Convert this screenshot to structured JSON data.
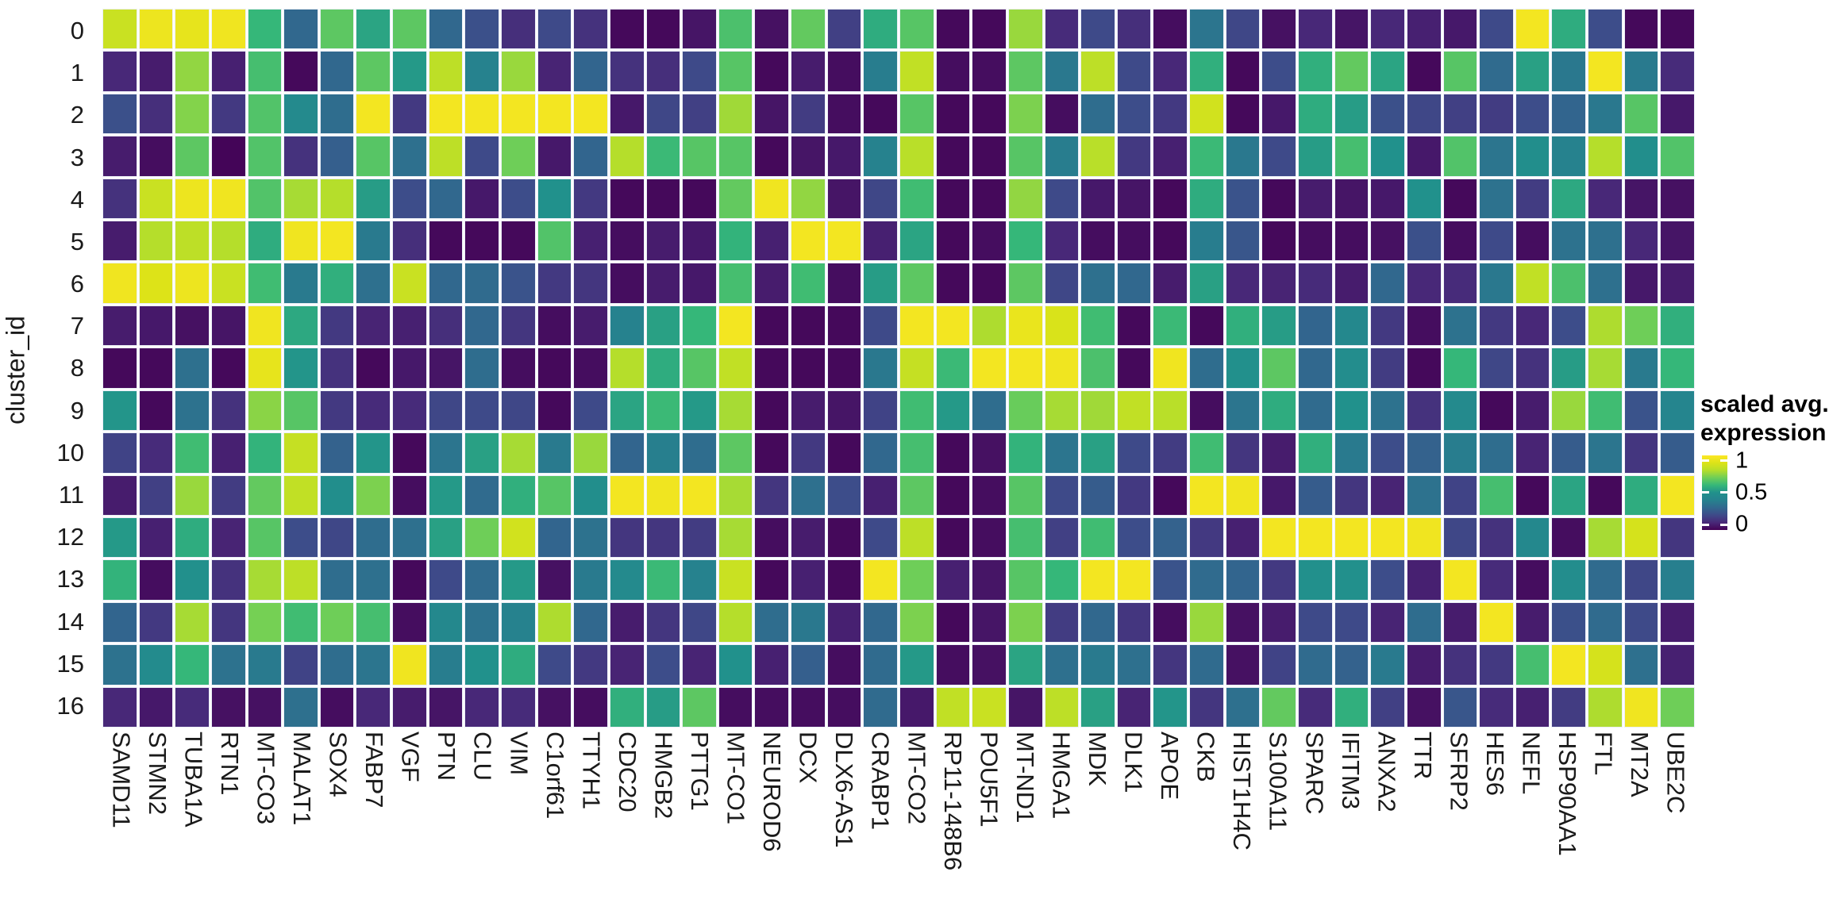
{
  "y_axis": {
    "title": "cluster_id",
    "labels": [
      "0",
      "1",
      "2",
      "3",
      "4",
      "5",
      "6",
      "7",
      "8",
      "9",
      "10",
      "11",
      "12",
      "13",
      "14",
      "15",
      "16"
    ]
  },
  "x_axis": {
    "labels": [
      "SAMD11",
      "STMN2",
      "TUBA1A",
      "RTN1",
      "MT-CO3",
      "MALAT1",
      "SOX4",
      "FABP7",
      "VGF",
      "PTN",
      "CLU",
      "VIM",
      "C1orf61",
      "TTYH1",
      "CDC20",
      "HMGB2",
      "PTTG1",
      "MT-CO1",
      "NEUROD6",
      "DCX",
      "DLX6-AS1",
      "CRABP1",
      "MT-CO2",
      "RP11-148B6",
      "POU5F1",
      "MT-ND1",
      "HMGA1",
      "MDK",
      "DLK1",
      "APOE",
      "CKB",
      "HIST1H4C",
      "S100A11",
      "SPARC",
      "IFITM3",
      "ANXA2",
      "TTR",
      "SFRP2",
      "HES6",
      "NEFL",
      "HSP90AA1",
      "FTL",
      "MT2A",
      "UBE2C"
    ]
  },
  "legend": {
    "title_lines": [
      "scaled avg.",
      "expression"
    ],
    "tick_labels": [
      "1",
      "0.5",
      "0"
    ],
    "tick_values": [
      1,
      0.5,
      0
    ]
  },
  "colors": {
    "background": "#ffffff",
    "text": "#1a1a1a",
    "colormap": "viridis",
    "viridis_stops": [
      "#440154",
      "#482878",
      "#3e4a89",
      "#31688e",
      "#26828e",
      "#21918c",
      "#35b779",
      "#6ece58",
      "#b5de2b",
      "#dde318",
      "#fde725"
    ]
  },
  "chart_data": {
    "type": "heatmap",
    "title": "",
    "xlabel": "",
    "ylabel": "cluster_id",
    "legend_title": "scaled avg. expression",
    "value_range": [
      0,
      1
    ],
    "colormap": "viridis",
    "grid": "white-gaps",
    "legend_position": "right",
    "rows": [
      "0",
      "1",
      "2",
      "3",
      "4",
      "5",
      "6",
      "7",
      "8",
      "9",
      "10",
      "11",
      "12",
      "13",
      "14",
      "15",
      "16"
    ],
    "columns": [
      "SAMD11",
      "STMN2",
      "TUBA1A",
      "RTN1",
      "MT-CO3",
      "MALAT1",
      "SOX4",
      "FABP7",
      "VGF",
      "PTN",
      "CLU",
      "VIM",
      "C1orf61",
      "TTYH1",
      "CDC20",
      "HMGB2",
      "PTTG1",
      "MT-CO1",
      "NEUROD6",
      "DCX",
      "DLX6-AS1",
      "CRABP1",
      "MT-CO2",
      "RP11-148B6",
      "POU5F1",
      "MT-ND1",
      "HMGA1",
      "MDK",
      "DLK1",
      "APOE",
      "CKB",
      "HIST1H4C",
      "S100A11",
      "SPARC",
      "IFITM3",
      "ANXA2",
      "TTR",
      "SFRP2",
      "HES6",
      "NEFL",
      "HSP90AA1",
      "FTL",
      "MT2A",
      "UBE2C"
    ],
    "values": [
      [
        0.85,
        0.95,
        0.93,
        0.96,
        0.6,
        0.3,
        0.67,
        0.55,
        0.67,
        0.3,
        0.22,
        0.12,
        0.2,
        0.13,
        0.02,
        0.02,
        0.05,
        0.64,
        0.04,
        0.68,
        0.17,
        0.57,
        0.66,
        0.02,
        0.02,
        0.76,
        0.11,
        0.2,
        0.12,
        0.03,
        0.35,
        0.19,
        0.04,
        0.1,
        0.05,
        0.1,
        0.08,
        0.06,
        0.2,
        0.97,
        0.57,
        0.21,
        0.02,
        0.02
      ],
      [
        0.1,
        0.07,
        0.75,
        0.08,
        0.63,
        0.02,
        0.3,
        0.67,
        0.52,
        0.82,
        0.4,
        0.76,
        0.09,
        0.29,
        0.13,
        0.12,
        0.2,
        0.66,
        0.02,
        0.07,
        0.03,
        0.38,
        0.83,
        0.03,
        0.03,
        0.67,
        0.36,
        0.82,
        0.2,
        0.1,
        0.58,
        0.02,
        0.21,
        0.58,
        0.68,
        0.55,
        0.02,
        0.66,
        0.31,
        0.54,
        0.36,
        0.97,
        0.37,
        0.11
      ],
      [
        0.22,
        0.12,
        0.73,
        0.15,
        0.65,
        0.45,
        0.32,
        0.97,
        0.15,
        0.97,
        0.97,
        0.97,
        0.97,
        0.97,
        0.06,
        0.19,
        0.17,
        0.77,
        0.05,
        0.16,
        0.03,
        0.02,
        0.66,
        0.02,
        0.02,
        0.72,
        0.03,
        0.32,
        0.21,
        0.15,
        0.87,
        0.02,
        0.06,
        0.57,
        0.53,
        0.22,
        0.19,
        0.17,
        0.16,
        0.21,
        0.29,
        0.36,
        0.66,
        0.06
      ],
      [
        0.07,
        0.03,
        0.67,
        0.01,
        0.65,
        0.13,
        0.27,
        0.66,
        0.33,
        0.82,
        0.2,
        0.7,
        0.06,
        0.29,
        0.8,
        0.61,
        0.66,
        0.66,
        0.02,
        0.05,
        0.06,
        0.4,
        0.81,
        0.02,
        0.02,
        0.66,
        0.38,
        0.81,
        0.15,
        0.08,
        0.61,
        0.36,
        0.2,
        0.53,
        0.63,
        0.5,
        0.06,
        0.65,
        0.35,
        0.48,
        0.4,
        0.8,
        0.48,
        0.65
      ],
      [
        0.13,
        0.85,
        0.95,
        0.96,
        0.65,
        0.78,
        0.8,
        0.53,
        0.21,
        0.3,
        0.06,
        0.21,
        0.5,
        0.15,
        0.02,
        0.02,
        0.02,
        0.68,
        0.96,
        0.75,
        0.05,
        0.19,
        0.62,
        0.02,
        0.02,
        0.75,
        0.2,
        0.06,
        0.05,
        0.02,
        0.57,
        0.23,
        0.02,
        0.07,
        0.05,
        0.06,
        0.5,
        0.02,
        0.34,
        0.16,
        0.56,
        0.1,
        0.05,
        0.04
      ],
      [
        0.07,
        0.8,
        0.82,
        0.8,
        0.57,
        0.96,
        0.97,
        0.37,
        0.12,
        0.02,
        0.02,
        0.02,
        0.65,
        0.08,
        0.03,
        0.07,
        0.06,
        0.59,
        0.08,
        0.97,
        0.97,
        0.08,
        0.55,
        0.02,
        0.03,
        0.6,
        0.1,
        0.03,
        0.03,
        0.02,
        0.38,
        0.24,
        0.02,
        0.03,
        0.03,
        0.04,
        0.22,
        0.03,
        0.2,
        0.03,
        0.34,
        0.33,
        0.1,
        0.05
      ],
      [
        0.96,
        0.9,
        0.95,
        0.85,
        0.62,
        0.37,
        0.58,
        0.33,
        0.85,
        0.3,
        0.31,
        0.23,
        0.15,
        0.14,
        0.03,
        0.07,
        0.06,
        0.63,
        0.07,
        0.62,
        0.03,
        0.53,
        0.67,
        0.02,
        0.02,
        0.67,
        0.19,
        0.33,
        0.3,
        0.07,
        0.54,
        0.1,
        0.09,
        0.11,
        0.07,
        0.3,
        0.1,
        0.11,
        0.36,
        0.83,
        0.64,
        0.33,
        0.06,
        0.07
      ],
      [
        0.07,
        0.06,
        0.04,
        0.05,
        0.96,
        0.56,
        0.15,
        0.09,
        0.08,
        0.12,
        0.3,
        0.14,
        0.03,
        0.07,
        0.4,
        0.54,
        0.6,
        0.97,
        0.02,
        0.02,
        0.02,
        0.2,
        0.97,
        0.97,
        0.79,
        0.94,
        0.89,
        0.62,
        0.02,
        0.61,
        0.02,
        0.58,
        0.53,
        0.29,
        0.44,
        0.15,
        0.03,
        0.34,
        0.15,
        0.1,
        0.21,
        0.79,
        0.7,
        0.58
      ],
      [
        0.02,
        0.02,
        0.33,
        0.02,
        0.93,
        0.51,
        0.13,
        0.02,
        0.06,
        0.05,
        0.32,
        0.03,
        0.02,
        0.03,
        0.8,
        0.57,
        0.66,
        0.83,
        0.02,
        0.02,
        0.02,
        0.36,
        0.84,
        0.61,
        0.97,
        0.97,
        0.96,
        0.64,
        0.02,
        0.96,
        0.32,
        0.49,
        0.67,
        0.3,
        0.47,
        0.16,
        0.02,
        0.6,
        0.19,
        0.13,
        0.53,
        0.78,
        0.37,
        0.6
      ],
      [
        0.51,
        0.02,
        0.34,
        0.13,
        0.74,
        0.66,
        0.15,
        0.11,
        0.11,
        0.19,
        0.2,
        0.19,
        0.02,
        0.2,
        0.55,
        0.61,
        0.52,
        0.78,
        0.02,
        0.07,
        0.05,
        0.18,
        0.62,
        0.52,
        0.32,
        0.69,
        0.78,
        0.77,
        0.83,
        0.81,
        0.03,
        0.35,
        0.57,
        0.31,
        0.5,
        0.34,
        0.13,
        0.45,
        0.02,
        0.07,
        0.76,
        0.62,
        0.23,
        0.42
      ],
      [
        0.18,
        0.11,
        0.62,
        0.08,
        0.59,
        0.84,
        0.28,
        0.51,
        0.02,
        0.35,
        0.54,
        0.78,
        0.37,
        0.76,
        0.29,
        0.39,
        0.32,
        0.67,
        0.02,
        0.15,
        0.02,
        0.3,
        0.63,
        0.02,
        0.04,
        0.59,
        0.35,
        0.54,
        0.2,
        0.16,
        0.62,
        0.14,
        0.07,
        0.58,
        0.37,
        0.21,
        0.28,
        0.38,
        0.32,
        0.09,
        0.26,
        0.35,
        0.14,
        0.26
      ],
      [
        0.07,
        0.17,
        0.76,
        0.16,
        0.68,
        0.83,
        0.48,
        0.72,
        0.03,
        0.52,
        0.31,
        0.58,
        0.66,
        0.48,
        0.97,
        0.96,
        0.97,
        0.78,
        0.14,
        0.33,
        0.21,
        0.08,
        0.67,
        0.02,
        0.03,
        0.66,
        0.2,
        0.26,
        0.15,
        0.02,
        0.97,
        0.96,
        0.06,
        0.26,
        0.14,
        0.09,
        0.34,
        0.18,
        0.63,
        0.02,
        0.55,
        0.02,
        0.57,
        0.97
      ],
      [
        0.52,
        0.08,
        0.57,
        0.09,
        0.66,
        0.21,
        0.19,
        0.32,
        0.33,
        0.54,
        0.7,
        0.87,
        0.29,
        0.34,
        0.14,
        0.14,
        0.16,
        0.78,
        0.03,
        0.07,
        0.02,
        0.2,
        0.82,
        0.02,
        0.03,
        0.63,
        0.17,
        0.62,
        0.21,
        0.28,
        0.15,
        0.08,
        0.97,
        0.97,
        0.97,
        0.97,
        0.96,
        0.19,
        0.13,
        0.44,
        0.03,
        0.78,
        0.88,
        0.14
      ],
      [
        0.59,
        0.03,
        0.49,
        0.13,
        0.78,
        0.82,
        0.32,
        0.33,
        0.02,
        0.2,
        0.31,
        0.52,
        0.04,
        0.37,
        0.45,
        0.61,
        0.4,
        0.85,
        0.02,
        0.08,
        0.02,
        0.97,
        0.7,
        0.08,
        0.05,
        0.66,
        0.6,
        0.97,
        0.97,
        0.23,
        0.31,
        0.29,
        0.15,
        0.49,
        0.49,
        0.21,
        0.08,
        0.97,
        0.11,
        0.03,
        0.47,
        0.31,
        0.19,
        0.39
      ],
      [
        0.29,
        0.15,
        0.78,
        0.14,
        0.71,
        0.62,
        0.7,
        0.63,
        0.03,
        0.44,
        0.34,
        0.4,
        0.79,
        0.3,
        0.07,
        0.14,
        0.19,
        0.8,
        0.32,
        0.36,
        0.08,
        0.3,
        0.72,
        0.02,
        0.05,
        0.72,
        0.16,
        0.3,
        0.14,
        0.03,
        0.76,
        0.04,
        0.07,
        0.2,
        0.2,
        0.09,
        0.32,
        0.07,
        0.97,
        0.07,
        0.22,
        0.31,
        0.2,
        0.07
      ],
      [
        0.34,
        0.46,
        0.6,
        0.34,
        0.37,
        0.18,
        0.32,
        0.35,
        0.96,
        0.38,
        0.5,
        0.57,
        0.2,
        0.15,
        0.09,
        0.21,
        0.09,
        0.5,
        0.08,
        0.27,
        0.03,
        0.31,
        0.52,
        0.03,
        0.04,
        0.55,
        0.33,
        0.37,
        0.33,
        0.14,
        0.31,
        0.04,
        0.18,
        0.31,
        0.28,
        0.37,
        0.07,
        0.13,
        0.15,
        0.63,
        0.97,
        0.88,
        0.33,
        0.08
      ],
      [
        0.1,
        0.06,
        0.11,
        0.04,
        0.04,
        0.33,
        0.03,
        0.1,
        0.07,
        0.05,
        0.1,
        0.11,
        0.04,
        0.03,
        0.58,
        0.53,
        0.67,
        0.03,
        0.03,
        0.03,
        0.03,
        0.31,
        0.06,
        0.83,
        0.85,
        0.05,
        0.82,
        0.54,
        0.09,
        0.51,
        0.14,
        0.33,
        0.68,
        0.11,
        0.58,
        0.17,
        0.04,
        0.24,
        0.11,
        0.08,
        0.16,
        0.79,
        0.96,
        0.7
      ]
    ]
  }
}
